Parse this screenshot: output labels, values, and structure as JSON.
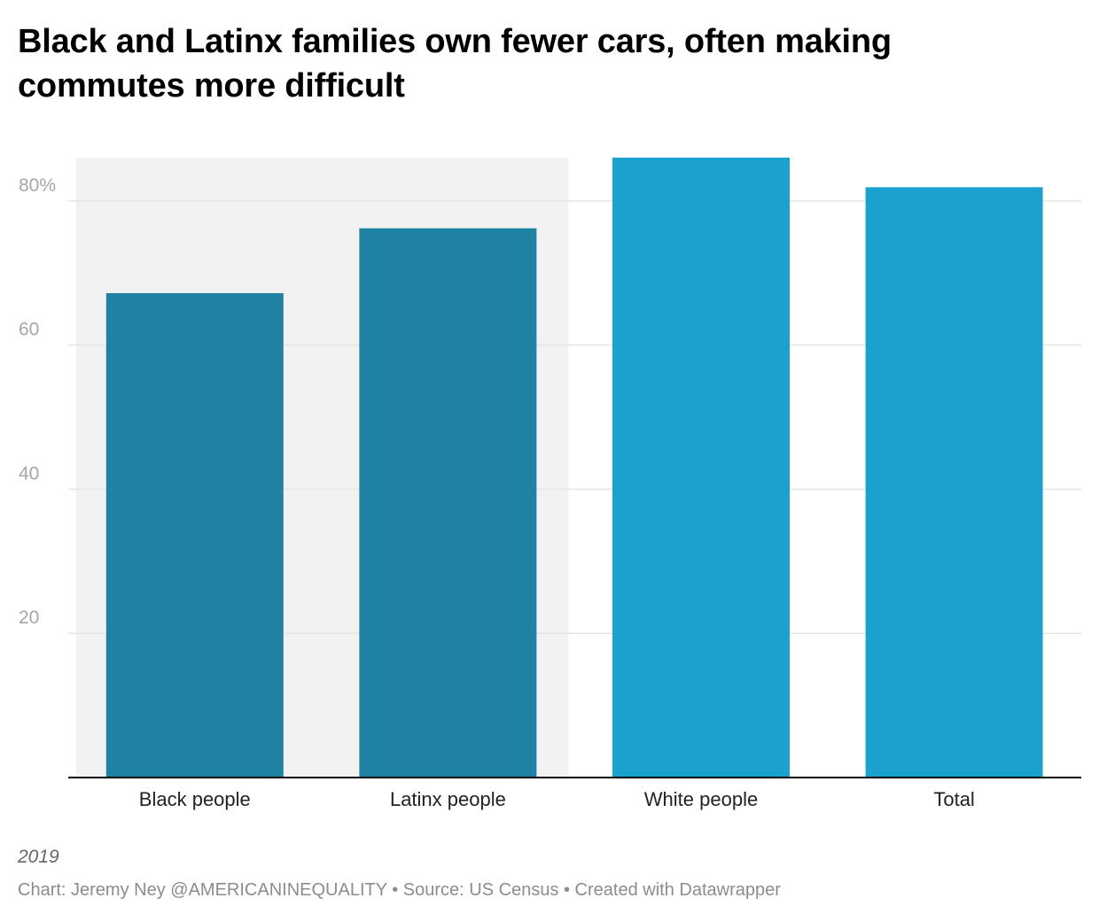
{
  "title": "Black and Latinx families own fewer cars, often making commutes more difficult",
  "note": "2019",
  "footer": "Chart: Jeremy Ney @AMERICANINEQUALITY • Source: US Census • Created with Datawrapper",
  "chart_data": {
    "type": "bar",
    "title": "Black and Latinx families own fewer cars, often making commutes more difficult",
    "xlabel": "",
    "ylabel": "",
    "categories": [
      "Black people",
      "Latinx people",
      "White people",
      "Total"
    ],
    "values": [
      67.2,
      76.2,
      86.0,
      81.9
    ],
    "ylim": [
      0,
      86
    ],
    "yticks": [
      20,
      40,
      60,
      80
    ],
    "ytick_labels": [
      "20",
      "40",
      "60",
      "80%"
    ],
    "grid": true,
    "highlight_band": [
      "Black people",
      "Latinx people"
    ],
    "colors": {
      "highlighted_bar": "#1f82a3",
      "bar": "#1ba1ce",
      "band": "#f2f2f2",
      "grid": "#e5e5e5",
      "axis": "#000000"
    }
  }
}
